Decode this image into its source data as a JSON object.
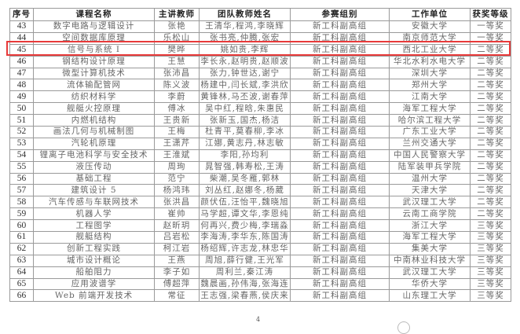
{
  "headers": {
    "no": "序号",
    "course": "课程名称",
    "lecturer": "主讲教师",
    "team": "团队教师姓名",
    "group": "参赛组别",
    "unit": "工作单位",
    "award": "获奖等级"
  },
  "highlight_color": "#e83a3a",
  "highlighted_row": "45",
  "rows": [
    {
      "no": "43",
      "course": "数字电路与逻辑设计",
      "lecturer": "张艳",
      "team": "王清华,程鸿,李晓辉",
      "group": "新工科副高组",
      "unit": "安徽大学",
      "award": "一等奖"
    },
    {
      "no": "44",
      "course": "空间数据库原理",
      "lecturer": "乐松山",
      "team": "张书亮,仲腾,张宏",
      "group": "新工科副高组",
      "unit": "南京师范大学",
      "award": "一等奖"
    },
    {
      "no": "45",
      "course": "信号与系统 I",
      "lecturer": "樊晔",
      "team": "姚如贵,李辉",
      "group": "新工科副高组",
      "unit": "西北工业大学",
      "award": "二等奖"
    },
    {
      "no": "46",
      "course": "钢结构设计原理",
      "lecturer": "王慧",
      "team": "李长永,赵明贵,赵顺波",
      "group": "新工科副高组",
      "unit": "华北水利水电大学",
      "award": "二等奖"
    },
    {
      "no": "47",
      "course": "微型计算机技术",
      "lecturer": "张沛昌",
      "team": "张力,钟世达,谢宁",
      "group": "新工科副高组",
      "unit": "深圳大学",
      "award": "二等奖"
    },
    {
      "no": "48",
      "course": "流体输配管网",
      "lecturer": "陈义波",
      "team": "杨建中,闫长斌,李洪欣",
      "group": "新工科副高组",
      "unit": "郑州大学",
      "award": "二等奖"
    },
    {
      "no": "49",
      "course": "纺织材料学",
      "lecturer": "李蔚",
      "team": "黄锋林,马丕波,谢春萍",
      "group": "新工科副高组",
      "unit": "江南大学",
      "award": "二等奖"
    },
    {
      "no": "50",
      "course": "舰艇火控原理",
      "lecturer": "傅冰",
      "team": "吴中红,程晗,朱惠民",
      "group": "新工科副高组",
      "unit": "海军工程大学",
      "award": "二等奖"
    },
    {
      "no": "51",
      "course": "内燃机结构",
      "lecturer": "王贵新",
      "team": "张新玉,国杰,杨洁",
      "group": "新工科副高组",
      "unit": "哈尔滨工程大学",
      "award": "二等奖"
    },
    {
      "no": "52",
      "course": "画法几何与机械制图",
      "lecturer": "王梅",
      "team": "杜青平,莫春柳,李冰",
      "group": "新工科副高组",
      "unit": "广东工业大学",
      "award": "二等奖"
    },
    {
      "no": "53",
      "course": "汽轮机原理",
      "lecturer": "王潇芹",
      "team": "江娜,黄志丹,林志敏",
      "group": "新工科副高组",
      "unit": "兰州交通大学",
      "award": "二等奖"
    },
    {
      "no": "54",
      "course": "锂离子电池科学与安全技术",
      "lecturer": "王淮斌",
      "team": "李阳,孙均利",
      "group": "新工科副高组",
      "unit": "中国人民警察大学",
      "award": "二等奖"
    },
    {
      "no": "55",
      "course": "液压传动",
      "lecturer": "周珣",
      "team": "晁智强,韩寿松,王涛",
      "group": "新工科副高组",
      "unit": "陆军装甲兵学院",
      "award": "二等奖"
    },
    {
      "no": "56",
      "course": "基础工程",
      "lecturer": "范宁",
      "team": "柴潮,吴冬雁,郭林",
      "group": "新工科副高组",
      "unit": "温州大学",
      "award": "二等奖"
    },
    {
      "no": "57",
      "course": "建筑设计 5",
      "lecturer": "杨鸿玮",
      "team": "刘丛红,赵娜冬,杨葳",
      "group": "新工科副高组",
      "unit": "天津大学",
      "award": "二等奖"
    },
    {
      "no": "58",
      "course": "汽车传感与车联网技术",
      "lecturer": "张洪昌",
      "team": "颜伏伍,汪怡平,魏晓旭",
      "group": "新工科副高组",
      "unit": "武汉理工大学",
      "award": "二等奖"
    },
    {
      "no": "59",
      "course": "机器人学",
      "lecturer": "崔帅",
      "team": "马学超,谭文华,李恩纯",
      "group": "新工科副高组",
      "unit": "云南工商学院",
      "award": "二等奖"
    },
    {
      "no": "60",
      "course": "工程图学",
      "lecturer": "赵昕玥",
      "team": "何再兴,费少梅,李瑞淼",
      "group": "新工科副高组",
      "unit": "浙江大学",
      "award": "三等奖"
    },
    {
      "no": "61",
      "course": "舰艇结构",
      "lecturer": "吕岩松",
      "team": "李海涛,李华东,陈国涛",
      "group": "新工科副高组",
      "unit": "海军工程大学",
      "award": "三等奖"
    },
    {
      "no": "62",
      "course": "创新工程实践",
      "lecturer": "柯江岩",
      "team": "杨绍辉,许志龙,林忠华",
      "group": "新工科副高组",
      "unit": "集美大学",
      "award": "三等奖"
    },
    {
      "no": "63",
      "course": "城市设计概论",
      "lecturer": "王燕",
      "team": "周旭,薛行健,王光军",
      "group": "新工科副高组",
      "unit": "中南林业科技大学",
      "award": "三等奖"
    },
    {
      "no": "64",
      "course": "船舶阻力",
      "lecturer": "李子如",
      "team": "周利兰,秦江涛",
      "group": "新工科副高组",
      "unit": "武汉理工大学",
      "award": "三等奖"
    },
    {
      "no": "65",
      "course": "应用波谱学",
      "lecturer": "傅超萍",
      "team": "魏晨画,孙伟海,张海连",
      "group": "新工科副高组",
      "unit": "华侨大学",
      "award": "三等奖"
    },
    {
      "no": "66",
      "course": "Web 前端开发技术",
      "lecturer": "常征",
      "team": "王志强,梁春燕,侯庆来",
      "group": "新工科副高组",
      "unit": "山东理工大学",
      "award": "三等奖"
    }
  ],
  "footer": {
    "page_number": "4"
  }
}
